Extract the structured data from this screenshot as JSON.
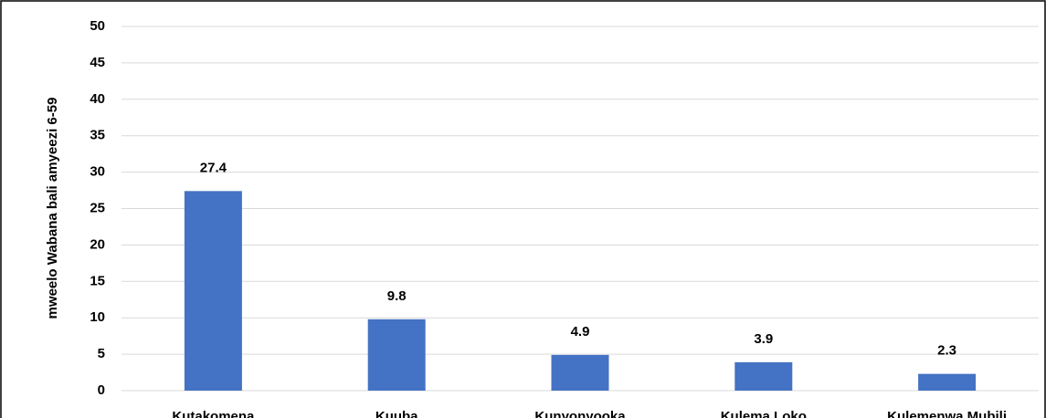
{
  "chart_data": {
    "type": "bar",
    "y_axis_label": "mweelo Wabana bali amyeezi 6-59",
    "categories": [
      "Kutakomena",
      "Kuuba",
      "Kunyonyooka",
      "Kulema Loko",
      "Kulemenwa Mubili"
    ],
    "values": [
      27.4,
      9.8,
      4.9,
      3.9,
      2.3
    ],
    "color": "#4472c4",
    "ylim": [
      0,
      50
    ],
    "yticks": [
      0,
      5,
      10,
      15,
      20,
      25,
      30,
      35,
      40,
      45,
      50
    ],
    "grid": true
  }
}
